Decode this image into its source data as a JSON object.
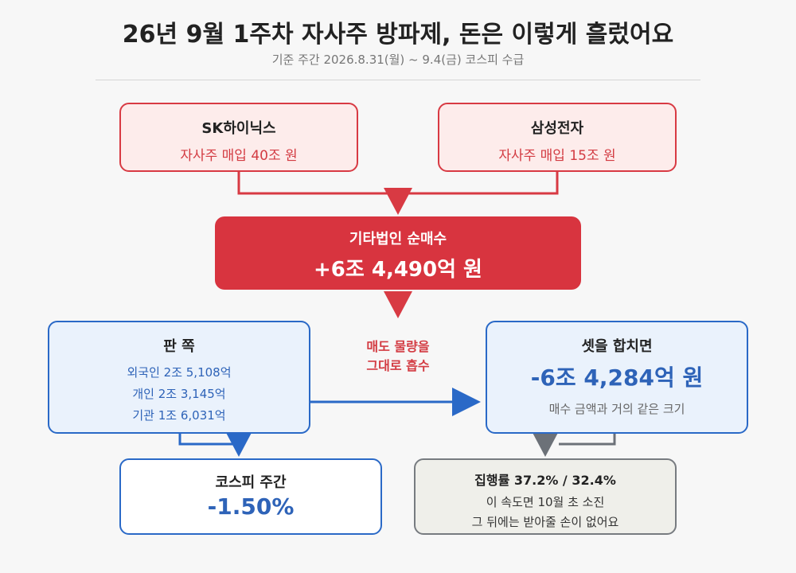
{
  "title": "26년 9월 1주차 자사주 방파제, 돈은 이렇게 흘렀어요",
  "subtitle": "기준 주간 2026.8.31(월) ~ 9.4(금) 코스피 수급",
  "sk": {
    "name": "SK하이닉스",
    "detail": "자사주 매입 40조 원"
  },
  "samsung": {
    "name": "삼성전자",
    "detail": "자사주 매입 15조 원"
  },
  "corp": {
    "label": "기타법인 순매수",
    "value": "+6조 4,490억 원"
  },
  "sell": {
    "heading": "판 쪽",
    "items": [
      "외국인 2조 5,108억",
      "개인 2조 3,145억",
      "기관 1조 6,031억"
    ]
  },
  "middle_note": [
    "매도 물량을",
    "그대로 흡수"
  ],
  "combined": {
    "heading": "셋을 합치면",
    "value": "-6조 4,284억 원",
    "note": "매수 금액과 거의 같은 크기"
  },
  "kospi": {
    "label": "코스피 주간",
    "value": "-1.50%"
  },
  "execution": {
    "heading": "집행률 37.2% / 32.4%",
    "line1": "이 속도면 10월 초 소진",
    "line2": "그 뒤에는 받아줄 손이 없어요"
  },
  "colors": {
    "red": "#d83a43",
    "blue": "#2a69c7",
    "gray": "#777b80"
  }
}
